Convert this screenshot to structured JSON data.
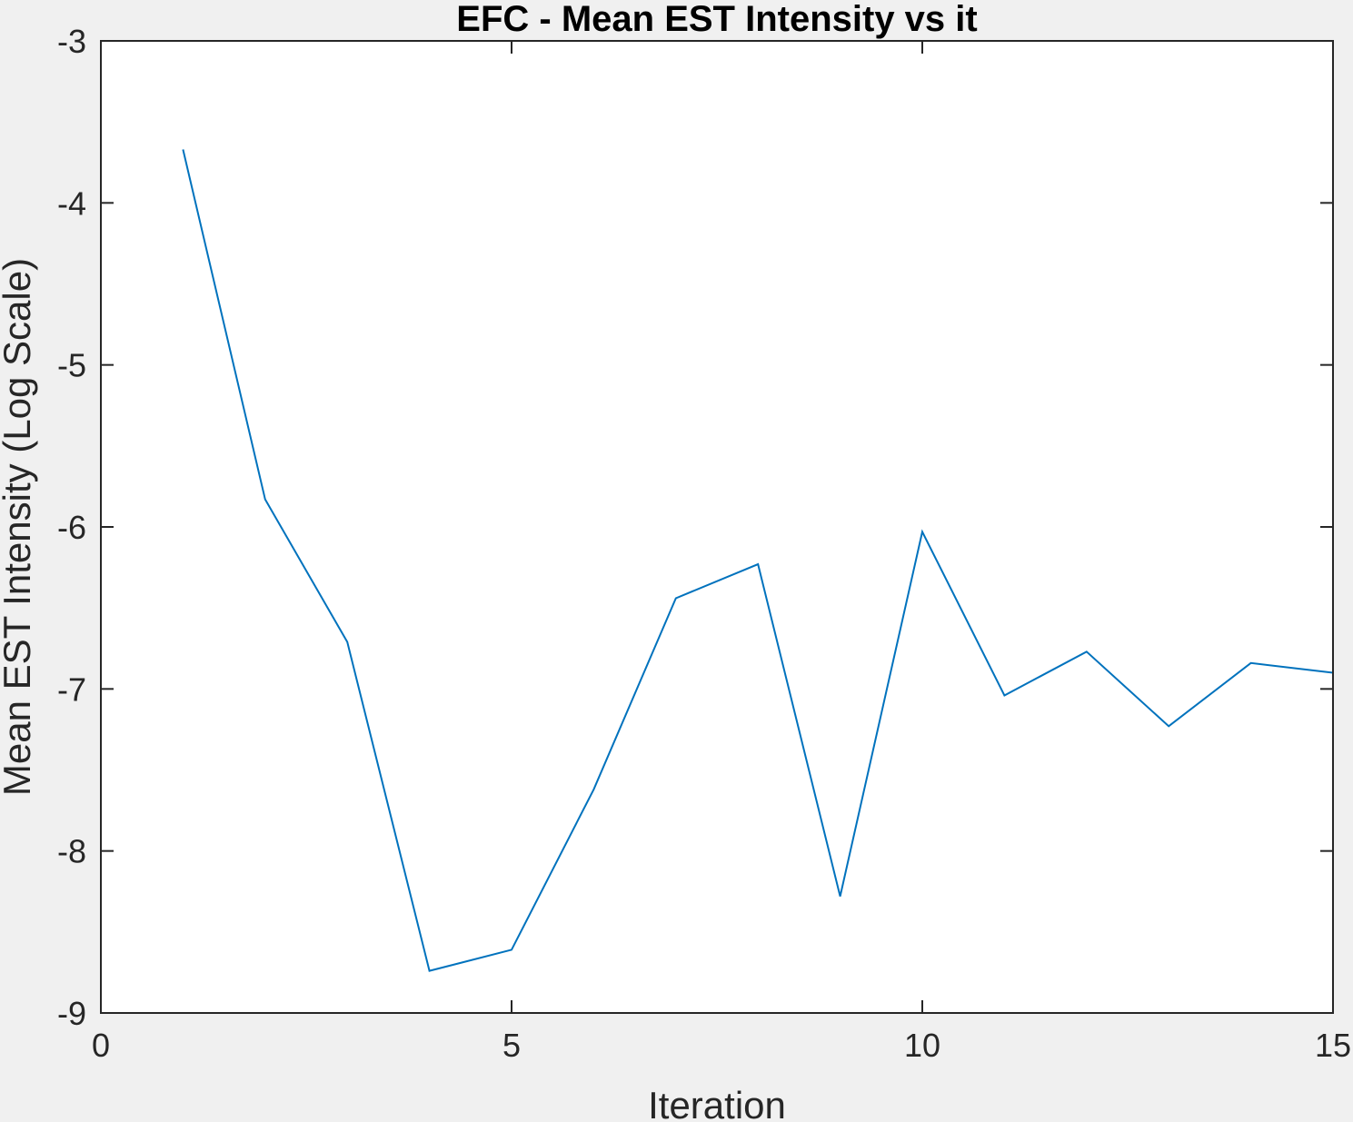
{
  "chart_data": {
    "type": "line",
    "title": "EFC - Mean EST Intensity vs it",
    "xlabel": "Iteration",
    "ylabel": "Mean EST Intensity (Log Scale)",
    "xlim": [
      0,
      15
    ],
    "ylim": [
      -9,
      -3
    ],
    "x_ticks": [
      0,
      5,
      10,
      15
    ],
    "y_ticks": [
      -9,
      -8,
      -7,
      -6,
      -5,
      -4,
      -3
    ],
    "x_tick_labels": [
      "0",
      "5",
      "10",
      "15"
    ],
    "y_tick_labels": [
      "-9",
      "-8",
      "-7",
      "-6",
      "-5",
      "-4",
      "-3"
    ],
    "grid": false,
    "series": [
      {
        "color": "#0072bd",
        "x": [
          1,
          2,
          3,
          4,
          5,
          6,
          7,
          8,
          9,
          10,
          11,
          12,
          13,
          14,
          15
        ],
        "values": [
          -3.67,
          -5.83,
          -6.71,
          -8.74,
          -8.61,
          -7.62,
          -6.44,
          -6.23,
          -8.28,
          -6.03,
          -7.04,
          -6.77,
          -7.23,
          -6.84,
          -6.9
        ]
      }
    ]
  },
  "colors": {
    "background": "#f0f0f0",
    "plot_background": "#ffffff",
    "axis": "#262626",
    "line": "#0072bd"
  }
}
